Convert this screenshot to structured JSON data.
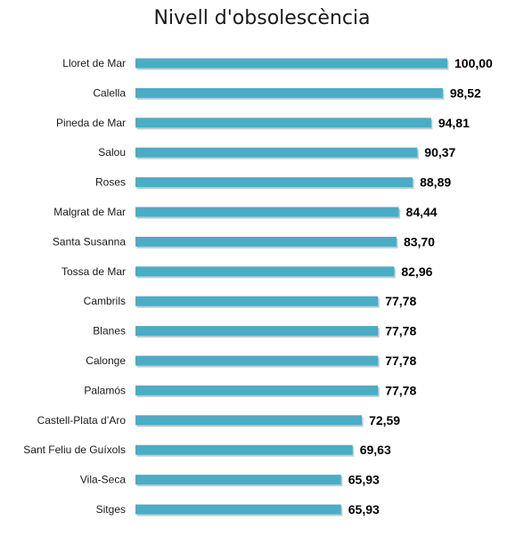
{
  "chart_data": {
    "type": "bar",
    "orientation": "horizontal",
    "title": "Nivell d'obsolescència",
    "xlabel": "",
    "ylabel": "",
    "categories": [
      "Lloret de Mar",
      "Calella",
      "Pineda de Mar",
      "Salou",
      "Roses",
      "Malgrat de Mar",
      "Santa Susanna",
      "Tossa de Mar",
      "Cambrils",
      "Blanes",
      "Calonge",
      "Palamós",
      "Castell-Plata d’Aro",
      "Sant Feliu de Guíxols",
      "Vila-Seca",
      "Sitges"
    ],
    "values": [
      100.0,
      98.52,
      94.81,
      90.37,
      88.89,
      84.44,
      83.7,
      82.96,
      77.78,
      77.78,
      77.78,
      77.78,
      72.59,
      69.63,
      65.93,
      65.93
    ],
    "value_labels": [
      "100,00",
      "98,52",
      "94,81",
      "90,37",
      "88,89",
      "84,44",
      "83,70",
      "82,96",
      "77,78",
      "77,78",
      "77,78",
      "77,78",
      "72,59",
      "69,63",
      "65,93",
      "65,93"
    ],
    "xlim": [
      0,
      100
    ],
    "grid": false,
    "legend": "none",
    "bar_color": "#4bacc6",
    "bar_shadow_color": "#c9c9c9"
  }
}
